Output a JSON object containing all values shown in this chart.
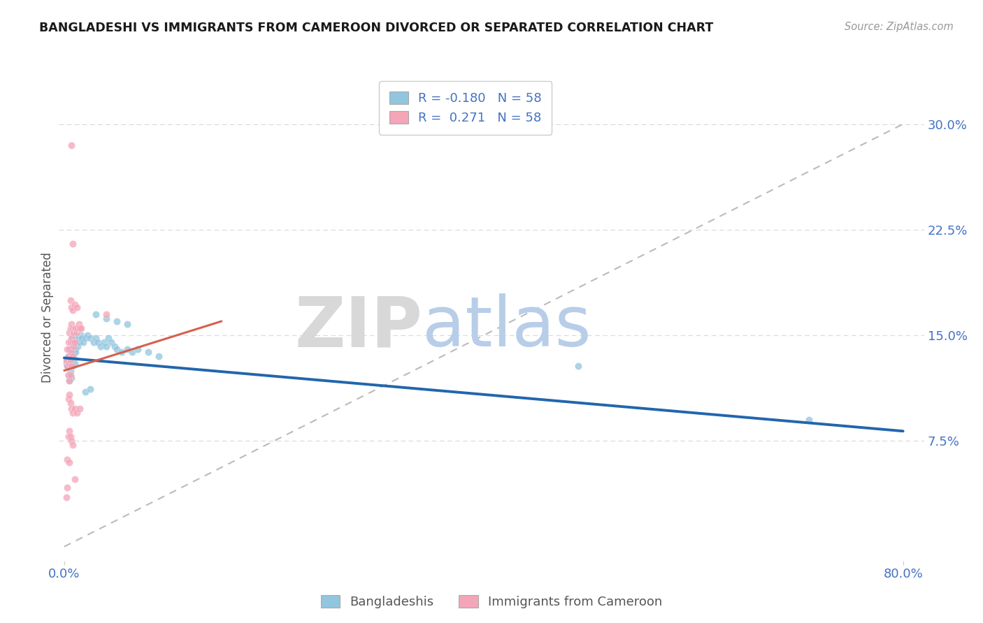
{
  "title": "BANGLADESHI VS IMMIGRANTS FROM CAMEROON DIVORCED OR SEPARATED CORRELATION CHART",
  "source_text": "Source: ZipAtlas.com",
  "ylabel": "Divorced or Separated",
  "ytick_labels": [
    "7.5%",
    "15.0%",
    "22.5%",
    "30.0%"
  ],
  "ytick_values": [
    0.075,
    0.15,
    0.225,
    0.3
  ],
  "xlim": [
    -0.005,
    0.82
  ],
  "ylim": [
    -0.01,
    0.335
  ],
  "blue_color": "#92c5de",
  "pink_color": "#f4a5b8",
  "blue_line_color": "#2166ac",
  "pink_line_color": "#d6604d",
  "axis_color": "#4472C4",
  "grid_color": "#d9d9d9",
  "ref_line_color": "#bbbbbb",
  "background_color": "#ffffff",
  "blue_trend_x": [
    0.0,
    0.8
  ],
  "blue_trend_y": [
    0.134,
    0.082
  ],
  "pink_trend_x": [
    0.0,
    0.15
  ],
  "pink_trend_y": [
    0.125,
    0.16
  ],
  "ref_line_x": [
    0.0,
    0.8
  ],
  "ref_line_y": [
    0.0,
    0.3
  ],
  "blue_scatter": [
    [
      0.002,
      0.13
    ],
    [
      0.003,
      0.128
    ],
    [
      0.003,
      0.132
    ],
    [
      0.004,
      0.135
    ],
    [
      0.004,
      0.122
    ],
    [
      0.005,
      0.14
    ],
    [
      0.005,
      0.128
    ],
    [
      0.005,
      0.118
    ],
    [
      0.006,
      0.145
    ],
    [
      0.006,
      0.132
    ],
    [
      0.006,
      0.125
    ],
    [
      0.007,
      0.14
    ],
    [
      0.007,
      0.13
    ],
    [
      0.007,
      0.12
    ],
    [
      0.008,
      0.148
    ],
    [
      0.008,
      0.138
    ],
    [
      0.008,
      0.128
    ],
    [
      0.009,
      0.145
    ],
    [
      0.009,
      0.135
    ],
    [
      0.01,
      0.15
    ],
    [
      0.01,
      0.14
    ],
    [
      0.01,
      0.13
    ],
    [
      0.011,
      0.148
    ],
    [
      0.011,
      0.138
    ],
    [
      0.012,
      0.145
    ],
    [
      0.013,
      0.142
    ],
    [
      0.014,
      0.148
    ],
    [
      0.015,
      0.145
    ],
    [
      0.016,
      0.15
    ],
    [
      0.017,
      0.148
    ],
    [
      0.018,
      0.145
    ],
    [
      0.02,
      0.148
    ],
    [
      0.022,
      0.15
    ],
    [
      0.025,
      0.148
    ],
    [
      0.028,
      0.145
    ],
    [
      0.03,
      0.148
    ],
    [
      0.032,
      0.145
    ],
    [
      0.035,
      0.142
    ],
    [
      0.038,
      0.145
    ],
    [
      0.04,
      0.142
    ],
    [
      0.042,
      0.148
    ],
    [
      0.045,
      0.145
    ],
    [
      0.048,
      0.142
    ],
    [
      0.05,
      0.14
    ],
    [
      0.055,
      0.138
    ],
    [
      0.06,
      0.14
    ],
    [
      0.065,
      0.138
    ],
    [
      0.07,
      0.14
    ],
    [
      0.08,
      0.138
    ],
    [
      0.09,
      0.135
    ],
    [
      0.03,
      0.165
    ],
    [
      0.04,
      0.162
    ],
    [
      0.05,
      0.16
    ],
    [
      0.06,
      0.158
    ],
    [
      0.02,
      0.11
    ],
    [
      0.025,
      0.112
    ],
    [
      0.49,
      0.128
    ],
    [
      0.71,
      0.09
    ]
  ],
  "pink_scatter": [
    [
      0.002,
      0.132
    ],
    [
      0.003,
      0.14
    ],
    [
      0.003,
      0.128
    ],
    [
      0.004,
      0.145
    ],
    [
      0.004,
      0.135
    ],
    [
      0.004,
      0.122
    ],
    [
      0.005,
      0.152
    ],
    [
      0.005,
      0.14
    ],
    [
      0.005,
      0.13
    ],
    [
      0.005,
      0.118
    ],
    [
      0.006,
      0.155
    ],
    [
      0.006,
      0.145
    ],
    [
      0.006,
      0.132
    ],
    [
      0.006,
      0.122
    ],
    [
      0.007,
      0.158
    ],
    [
      0.007,
      0.148
    ],
    [
      0.007,
      0.138
    ],
    [
      0.007,
      0.128
    ],
    [
      0.008,
      0.155
    ],
    [
      0.008,
      0.145
    ],
    [
      0.008,
      0.135
    ],
    [
      0.009,
      0.152
    ],
    [
      0.009,
      0.142
    ],
    [
      0.01,
      0.155
    ],
    [
      0.01,
      0.145
    ],
    [
      0.011,
      0.155
    ],
    [
      0.012,
      0.152
    ],
    [
      0.013,
      0.155
    ],
    [
      0.014,
      0.158
    ],
    [
      0.015,
      0.155
    ],
    [
      0.016,
      0.155
    ],
    [
      0.006,
      0.175
    ],
    [
      0.007,
      0.17
    ],
    [
      0.008,
      0.168
    ],
    [
      0.01,
      0.172
    ],
    [
      0.012,
      0.17
    ],
    [
      0.04,
      0.165
    ],
    [
      0.007,
      0.285
    ],
    [
      0.008,
      0.215
    ],
    [
      0.004,
      0.105
    ],
    [
      0.005,
      0.108
    ],
    [
      0.006,
      0.102
    ],
    [
      0.007,
      0.098
    ],
    [
      0.008,
      0.095
    ],
    [
      0.01,
      0.098
    ],
    [
      0.012,
      0.095
    ],
    [
      0.015,
      0.098
    ],
    [
      0.004,
      0.078
    ],
    [
      0.005,
      0.082
    ],
    [
      0.006,
      0.078
    ],
    [
      0.007,
      0.075
    ],
    [
      0.008,
      0.072
    ],
    [
      0.003,
      0.042
    ],
    [
      0.01,
      0.048
    ],
    [
      0.003,
      0.062
    ],
    [
      0.005,
      0.06
    ],
    [
      0.002,
      0.035
    ]
  ]
}
